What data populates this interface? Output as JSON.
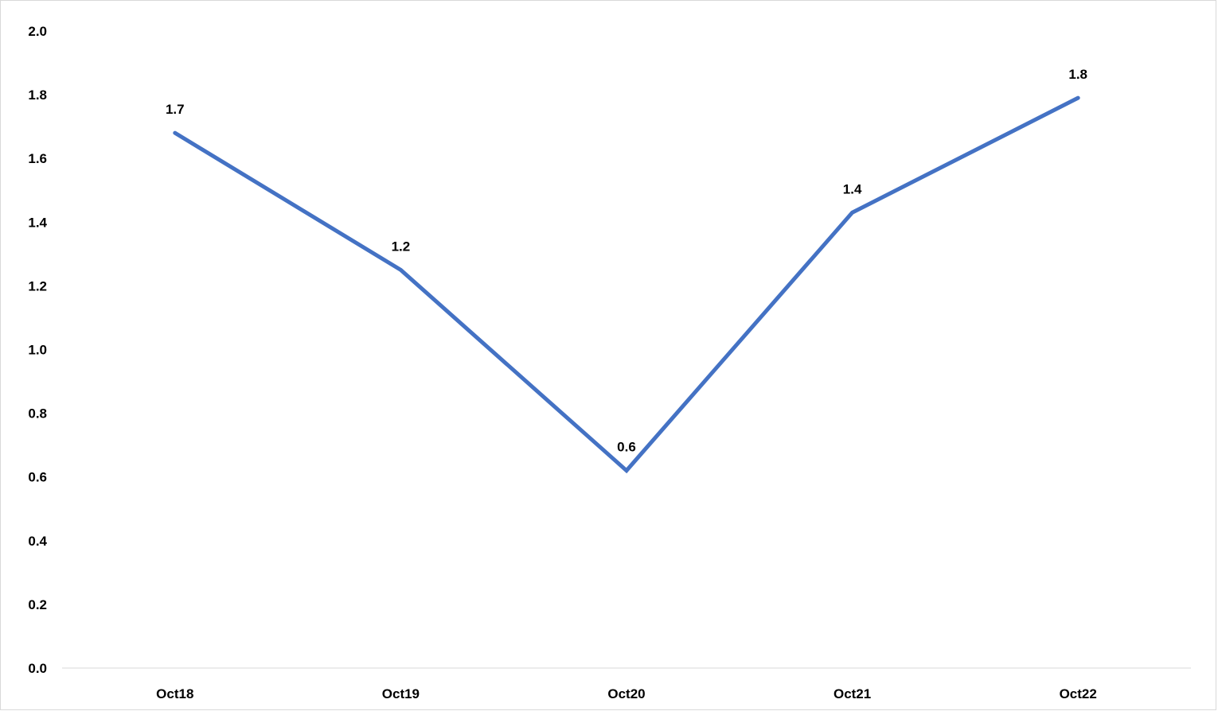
{
  "chart_data": {
    "type": "line",
    "title": "",
    "xlabel": "",
    "ylabel": "",
    "categories": [
      "Oct18",
      "Oct19",
      "Oct20",
      "Oct21",
      "Oct22"
    ],
    "series": [
      {
        "values": [
          1.68,
          1.25,
          0.62,
          1.43,
          1.79
        ],
        "data_labels": [
          "1.7",
          "1.2",
          "0.6",
          "1.4",
          "1.8"
        ],
        "color": "#4472C4"
      }
    ],
    "ylim": [
      0,
      2.0
    ],
    "yticks": [
      0,
      0.2,
      0.4,
      0.6,
      0.8,
      1.0,
      1.2,
      1.4,
      1.6,
      1.8,
      2.0
    ],
    "ytick_labels": [
      "0.0",
      "0.2",
      "0.4",
      "0.6",
      "0.8",
      "1.0",
      "1.2",
      "1.4",
      "1.6",
      "1.8",
      "2.0"
    ],
    "grid": false,
    "legend": "none",
    "axis_color": "#d9d9d9"
  }
}
